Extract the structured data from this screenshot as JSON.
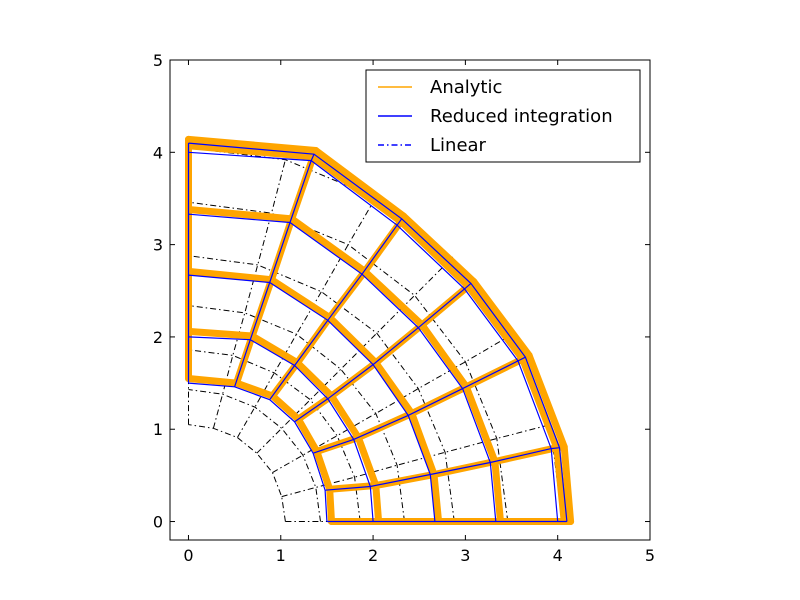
{
  "chart_data": {
    "type": "line",
    "title": "",
    "xlabel": "",
    "ylabel": "",
    "xlim": [
      -0.2,
      5
    ],
    "ylim": [
      -0.2,
      5
    ],
    "grid": false,
    "legend_position": "top-right",
    "x_ticks": [
      "0",
      "1",
      "2",
      "3",
      "4",
      "5"
    ],
    "y_ticks": [
      "0",
      "1",
      "2",
      "3",
      "4",
      "5"
    ],
    "mesh": {
      "inner_radius": 1.0,
      "outer_radius": 4.0,
      "radial_divisions": 6,
      "angular_divisions": 6,
      "angle_range_deg": [
        0,
        90
      ]
    },
    "series": [
      {
        "name": "Analytic",
        "color": "#ffa500",
        "style": "solid-thick",
        "nodes": [
          [
            [
              1.55,
              0.0
            ],
            [
              2.06,
              0.0
            ],
            [
              2.71,
              0.0
            ],
            [
              3.38,
              0.0
            ],
            [
              4.07,
              0.0
            ],
            [
              4.14,
              0.0
            ]
          ],
          [
            [
              1.53,
              0.35
            ],
            [
              2.03,
              0.39
            ],
            [
              2.66,
              0.51
            ],
            [
              3.32,
              0.65
            ],
            [
              3.99,
              0.8
            ],
            [
              4.07,
              0.81
            ]
          ],
          [
            [
              1.39,
              0.76
            ],
            [
              1.84,
              0.91
            ],
            [
              2.42,
              1.17
            ],
            [
              3.01,
              1.46
            ],
            [
              3.62,
              1.76
            ],
            [
              3.69,
              1.8
            ]
          ],
          [
            [
              1.19,
              1.11
            ],
            [
              1.55,
              1.36
            ],
            [
              2.03,
              1.72
            ],
            [
              2.53,
              2.13
            ],
            [
              3.03,
              2.55
            ],
            [
              3.09,
              2.6
            ]
          ],
          [
            [
              0.91,
              1.36
            ],
            [
              1.18,
              1.72
            ],
            [
              1.53,
              2.21
            ],
            [
              1.91,
              2.71
            ],
            [
              2.3,
              3.25
            ],
            [
              2.33,
              3.31
            ]
          ],
          [
            [
              0.52,
              1.5
            ],
            [
              0.69,
              2.01
            ],
            [
              0.9,
              2.62
            ],
            [
              1.12,
              3.28
            ],
            [
              1.35,
              3.95
            ],
            [
              1.38,
              4.02
            ]
          ],
          [
            [
              0.0,
              1.55
            ],
            [
              0.0,
              2.06
            ],
            [
              0.0,
              2.71
            ],
            [
              0.0,
              3.38
            ],
            [
              0.0,
              4.07
            ],
            [
              0.0,
              4.14
            ]
          ]
        ]
      },
      {
        "name": "Reduced integration",
        "color": "#0000ff",
        "style": "solid",
        "nodes": [
          [
            [
              1.5,
              0.0
            ],
            [
              2.0,
              0.0
            ],
            [
              2.67,
              0.0
            ],
            [
              3.33,
              0.0
            ],
            [
              4.0,
              0.0
            ],
            [
              4.1,
              0.0
            ]
          ],
          [
            [
              1.48,
              0.34
            ],
            [
              1.97,
              0.38
            ],
            [
              2.62,
              0.51
            ],
            [
              3.27,
              0.64
            ],
            [
              3.93,
              0.79
            ],
            [
              4.02,
              0.8
            ]
          ],
          [
            [
              1.35,
              0.74
            ],
            [
              1.79,
              0.89
            ],
            [
              2.38,
              1.15
            ],
            [
              2.97,
              1.44
            ],
            [
              3.57,
              1.74
            ],
            [
              3.65,
              1.78
            ]
          ],
          [
            [
              1.15,
              1.08
            ],
            [
              1.51,
              1.33
            ],
            [
              2.0,
              1.7
            ],
            [
              2.49,
              2.1
            ],
            [
              2.99,
              2.52
            ],
            [
              3.06,
              2.58
            ]
          ],
          [
            [
              0.88,
              1.32
            ],
            [
              1.15,
              1.69
            ],
            [
              1.51,
              2.18
            ],
            [
              1.88,
              2.68
            ],
            [
              2.26,
              3.21
            ],
            [
              2.31,
              3.28
            ]
          ],
          [
            [
              0.5,
              1.46
            ],
            [
              0.67,
              1.97
            ],
            [
              0.88,
              2.59
            ],
            [
              1.1,
              3.24
            ],
            [
              1.33,
              3.91
            ],
            [
              1.36,
              3.98
            ]
          ],
          [
            [
              0.0,
              1.5
            ],
            [
              0.0,
              2.0
            ],
            [
              0.0,
              2.67
            ],
            [
              0.0,
              3.33
            ],
            [
              0.0,
              4.0
            ],
            [
              0.0,
              4.1
            ]
          ]
        ]
      },
      {
        "name": "Linear",
        "color": "#000000",
        "style": "dash-dot",
        "nodes": [
          [
            [
              1.05,
              0.0
            ],
            [
              1.43,
              0.0
            ],
            [
              1.86,
              0.0
            ],
            [
              2.34,
              0.0
            ],
            [
              2.88,
              0.0
            ],
            [
              3.46,
              0.0
            ],
            [
              4.05,
              0.0
            ]
          ],
          [
            [
              1.01,
              0.27
            ],
            [
              1.38,
              0.37
            ],
            [
              1.8,
              0.48
            ],
            [
              2.26,
              0.61
            ],
            [
              2.78,
              0.75
            ],
            [
              3.34,
              0.9
            ],
            [
              3.92,
              1.05
            ]
          ],
          [
            [
              0.91,
              0.53
            ],
            [
              1.24,
              0.72
            ],
            [
              1.61,
              0.93
            ],
            [
              2.03,
              1.17
            ],
            [
              2.49,
              1.44
            ],
            [
              3.0,
              1.73
            ],
            [
              3.51,
              2.03
            ]
          ],
          [
            [
              0.74,
              0.74
            ],
            [
              1.01,
              1.01
            ],
            [
              1.32,
              1.32
            ],
            [
              1.65,
              1.65
            ],
            [
              2.04,
              2.04
            ],
            [
              2.45,
              2.45
            ],
            [
              2.86,
              2.86
            ]
          ],
          [
            [
              0.53,
              0.91
            ],
            [
              0.72,
              1.24
            ],
            [
              0.93,
              1.61
            ],
            [
              1.17,
              2.03
            ],
            [
              1.44,
              2.49
            ],
            [
              1.73,
              3.0
            ],
            [
              2.03,
              3.51
            ]
          ],
          [
            [
              0.27,
              1.01
            ],
            [
              0.37,
              1.38
            ],
            [
              0.48,
              1.8
            ],
            [
              0.61,
              2.26
            ],
            [
              0.75,
              2.78
            ],
            [
              0.9,
              3.34
            ],
            [
              1.05,
              3.92
            ]
          ],
          [
            [
              0.0,
              1.05
            ],
            [
              0.0,
              1.43
            ],
            [
              0.0,
              1.86
            ],
            [
              0.0,
              2.34
            ],
            [
              0.0,
              2.88
            ],
            [
              0.0,
              3.46
            ],
            [
              0.0,
              4.05
            ]
          ]
        ]
      }
    ],
    "legend": {
      "entries": [
        "Analytic",
        "Reduced integration",
        "Linear"
      ]
    }
  }
}
